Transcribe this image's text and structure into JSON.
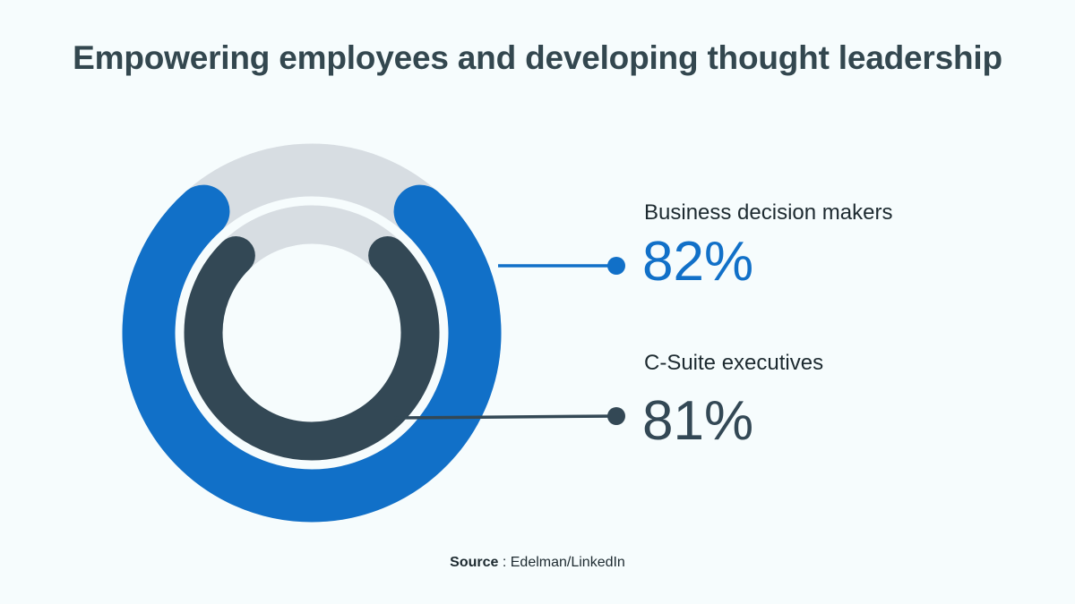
{
  "chart_data": {
    "type": "radial-bar",
    "title": "Empowering employees and developing thought leadership",
    "series": [
      {
        "name": "Business decision makers",
        "value": 82,
        "label": "82%",
        "color": "#1170c8"
      },
      {
        "name": "C-Suite executives",
        "value": 81,
        "label": "81%",
        "color": "#334855"
      }
    ],
    "max": 100,
    "track_color": "#d7dde2"
  },
  "source": {
    "prefix": "Source",
    "text": " : Edelman/LinkedIn"
  }
}
